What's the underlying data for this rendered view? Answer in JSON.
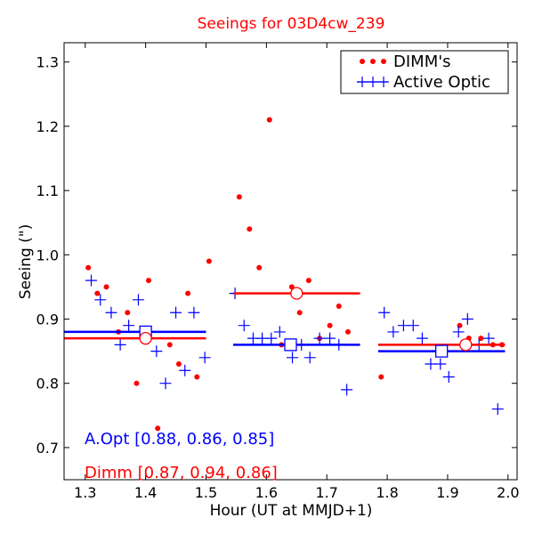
{
  "chart_data": {
    "type": "scatter",
    "title": "Seeings for 03D4cw_239",
    "xlabel": "Hour (UT at MMJD+1)",
    "ylabel": "Seeing (\")",
    "xlim": [
      1.265,
      2.015
    ],
    "ylim": [
      0.65,
      1.33
    ],
    "xticks": [
      "1.3",
      "1.4",
      "1.5",
      "1.6",
      "1.7",
      "1.8",
      "1.9",
      "2.0"
    ],
    "yticks": [
      "0.7",
      "0.8",
      "0.9",
      "1.0",
      "1.1",
      "1.2",
      "1.3"
    ],
    "grid": false,
    "legend_position": "top-right",
    "colors": {
      "dimm": "#ff0000",
      "aopt": "#0000ff",
      "title": "#ff0000"
    },
    "series": [
      {
        "name": "DIMM's",
        "marker": "dot",
        "x": [
          1.305,
          1.32,
          1.335,
          1.355,
          1.37,
          1.385,
          1.405,
          1.42,
          1.44,
          1.455,
          1.47,
          1.485,
          1.505,
          1.555,
          1.572,
          1.588,
          1.605,
          1.625,
          1.642,
          1.655,
          1.67,
          1.688,
          1.705,
          1.72,
          1.735,
          1.79,
          1.92,
          1.935,
          1.955,
          1.975,
          1.99
        ],
        "y": [
          0.98,
          0.94,
          0.95,
          0.88,
          0.91,
          0.8,
          0.96,
          0.73,
          0.86,
          0.83,
          0.94,
          0.81,
          0.99,
          1.09,
          1.04,
          0.98,
          1.21,
          0.86,
          0.95,
          0.91,
          0.96,
          0.87,
          0.89,
          0.92,
          0.88,
          0.81,
          0.89,
          0.87,
          0.87,
          0.86,
          0.86
        ]
      },
      {
        "name": "Active Optic",
        "marker": "plus",
        "x": [
          1.31,
          1.325,
          1.343,
          1.358,
          1.372,
          1.388,
          1.418,
          1.433,
          1.45,
          1.465,
          1.48,
          1.498,
          1.548,
          1.563,
          1.578,
          1.593,
          1.608,
          1.622,
          1.643,
          1.658,
          1.672,
          1.688,
          1.705,
          1.72,
          1.733,
          1.795,
          1.81,
          1.827,
          1.843,
          1.858,
          1.872,
          1.888,
          1.902,
          1.918,
          1.933,
          1.952,
          1.968,
          1.983
        ],
        "y": [
          0.96,
          0.93,
          0.91,
          0.86,
          0.89,
          0.93,
          0.85,
          0.8,
          0.91,
          0.82,
          0.91,
          0.84,
          0.94,
          0.89,
          0.87,
          0.87,
          0.87,
          0.88,
          0.84,
          0.86,
          0.84,
          0.87,
          0.87,
          0.86,
          0.79,
          0.91,
          0.88,
          0.89,
          0.89,
          0.87,
          0.83,
          0.83,
          0.81,
          0.88,
          0.9,
          0.86,
          0.87,
          0.76
        ]
      }
    ],
    "means": {
      "aopt": [
        {
          "x_range": [
            1.265,
            1.5
          ],
          "value": 0.88,
          "marker_x": 1.4,
          "marker": "square"
        },
        {
          "x_range": [
            1.545,
            1.755
          ],
          "value": 0.86,
          "marker_x": 1.64,
          "marker": "square"
        },
        {
          "x_range": [
            1.785,
            1.995
          ],
          "value": 0.85,
          "marker_x": 1.89,
          "marker": "square"
        }
      ],
      "dimm": [
        {
          "x_range": [
            1.265,
            1.5
          ],
          "value": 0.87,
          "marker_x": 1.4,
          "marker": "circle"
        },
        {
          "x_range": [
            1.545,
            1.755
          ],
          "value": 0.94,
          "marker_x": 1.65,
          "marker": "circle"
        },
        {
          "x_range": [
            1.785,
            1.995
          ],
          "value": 0.86,
          "marker_x": 1.93,
          "marker": "circle"
        }
      ]
    },
    "annotations": {
      "aopt": "A.Opt [0.88, 0.86, 0.85]",
      "dimm": "Dimm [0.87, 0.94, 0.86]"
    }
  }
}
